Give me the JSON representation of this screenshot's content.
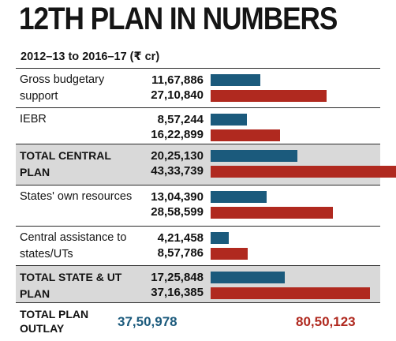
{
  "header": {
    "title": "12TH PLAN IN NUMBERS",
    "subtitle": "2012–13 to 2016–17  (₹ cr)"
  },
  "chart_data": {
    "type": "bar",
    "orientation": "horizontal",
    "title": "12TH PLAN IN NUMBERS",
    "subtitle": "2012–13 to 2016–17  (₹ cr)",
    "max_value": 4333739,
    "colors": {
      "series_a": "#1b5a7c",
      "series_b": "#b0291f"
    },
    "rows": [
      {
        "label": "Gross budgetary support",
        "values": [
          1167886,
          2710840
        ],
        "labels": [
          "11,67,886",
          "27,10,840"
        ],
        "shaded": false
      },
      {
        "label": "IEBR",
        "values": [
          857244,
          1622899
        ],
        "labels": [
          "8,57,244",
          "16,22,899"
        ],
        "shaded": false
      },
      {
        "label": "TOTAL CENTRAL PLAN",
        "values": [
          2025130,
          4333739
        ],
        "labels": [
          "20,25,130",
          "43,33,739"
        ],
        "shaded": true
      },
      {
        "label": "States' own resources",
        "values": [
          1304390,
          2858599
        ],
        "labels": [
          "13,04,390",
          "28,58,599"
        ],
        "shaded": false
      },
      {
        "label": "Central assistance to states/UTs",
        "values": [
          421458,
          857786
        ],
        "labels": [
          "4,21,458",
          "8,57,786"
        ],
        "shaded": false
      },
      {
        "label": "TOTAL STATE & UT PLAN",
        "values": [
          1725848,
          3716385
        ],
        "labels": [
          "17,25,848",
          "37,16,385"
        ],
        "shaded": true
      }
    ],
    "total": {
      "label": "TOTAL PLAN OUTLAY",
      "values": [
        3750978,
        8050123
      ],
      "labels": [
        "37,50,978",
        "80,50,123"
      ]
    }
  }
}
